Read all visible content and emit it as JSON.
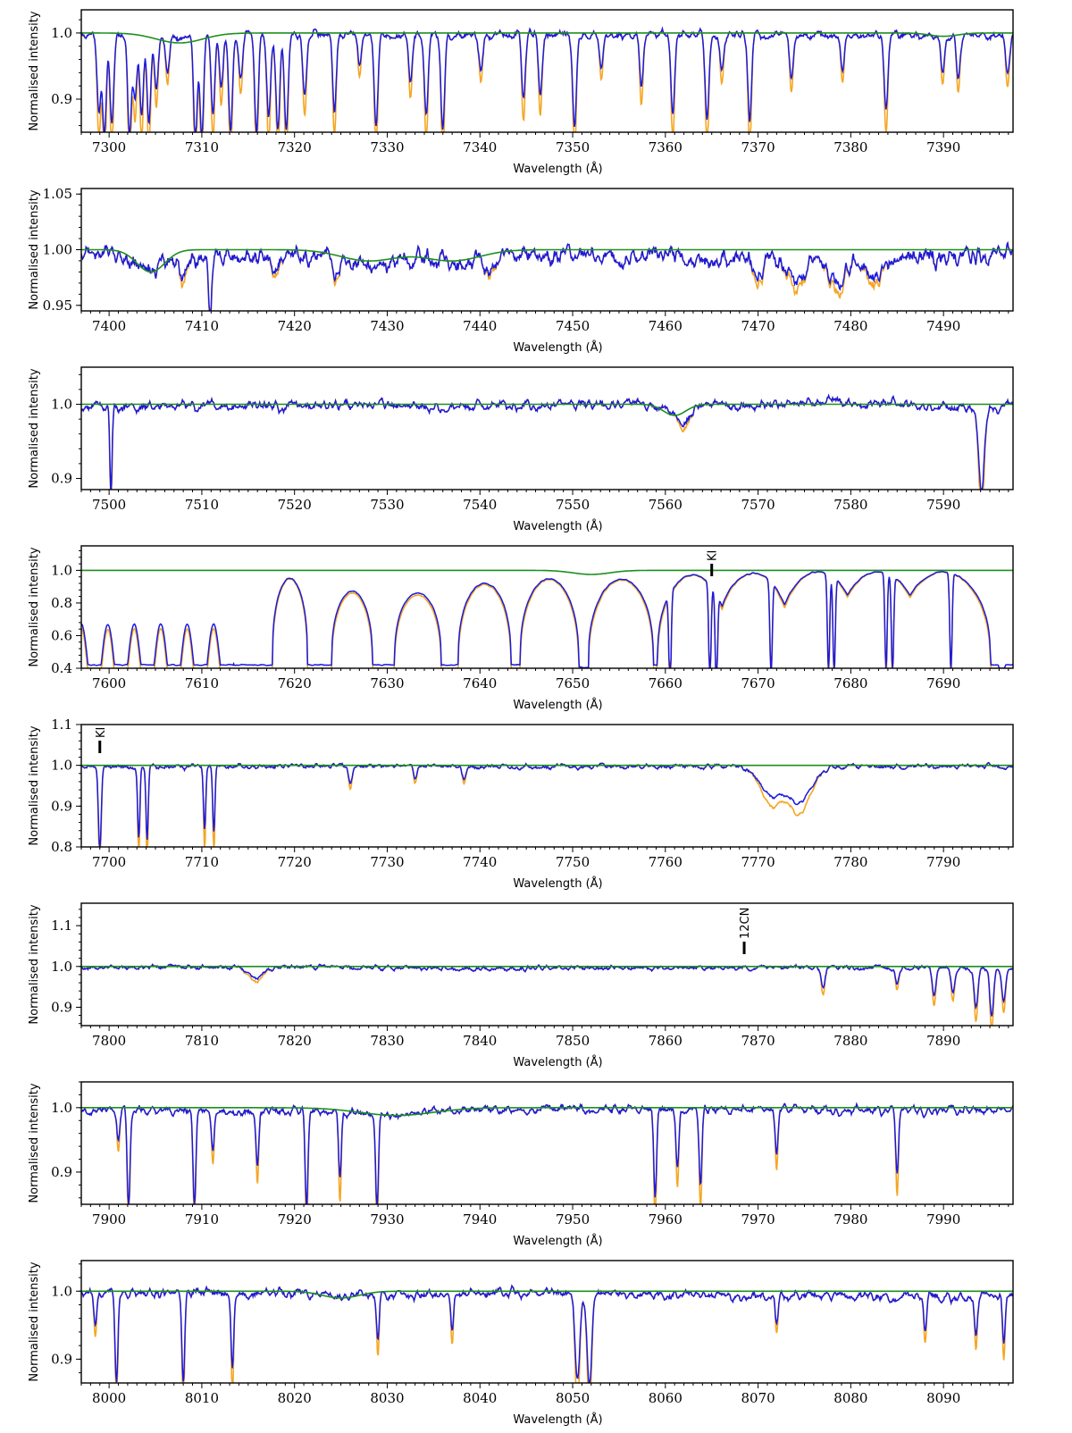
{
  "colors": {
    "observed": "#1a1adf",
    "telluric_corrected": "#f5a623",
    "model": "#1f8f1f",
    "axis": "#000000"
  },
  "chart_data": [
    {
      "type": "line",
      "xlabel": "Wavelength (Å)",
      "ylabel": "Normalised intensity",
      "xlim": [
        7297,
        7397.5
      ],
      "ylim": [
        0.85,
        1.035
      ],
      "xticks": [
        7300,
        7310,
        7320,
        7330,
        7340,
        7350,
        7360,
        7370,
        7380,
        7390
      ],
      "yticks": [
        0.9,
        1.0
      ],
      "ytick_labels": [
        "0.9",
        "1.0"
      ],
      "noise": 0.008,
      "depth_floor": 0.85,
      "dips": [
        [
          7298.9,
          0.12,
          0.2
        ],
        [
          7299.5,
          0.15,
          0.2
        ],
        [
          7300.3,
          0.14,
          0.2
        ],
        [
          7302.2,
          0.15,
          0.2
        ],
        [
          7302.8,
          0.1,
          0.2
        ],
        [
          7303.5,
          0.12,
          0.2
        ],
        [
          7304.3,
          0.13,
          0.2
        ],
        [
          7305.1,
          0.08,
          0.2
        ],
        [
          7306.3,
          0.05,
          0.2
        ],
        [
          7309.3,
          0.15,
          0.2
        ],
        [
          7310.0,
          0.15,
          0.2
        ],
        [
          7311.2,
          0.12,
          0.2
        ],
        [
          7312.1,
          0.08,
          0.2
        ],
        [
          7313.1,
          0.15,
          0.2
        ],
        [
          7314.2,
          0.07,
          0.2
        ],
        [
          7315.9,
          0.15,
          0.2
        ],
        [
          7317.2,
          0.13,
          0.2
        ],
        [
          7318.2,
          0.15,
          0.2
        ],
        [
          7319.1,
          0.15,
          0.2
        ],
        [
          7321.1,
          0.09,
          0.2
        ],
        [
          7324.3,
          0.12,
          0.2
        ],
        [
          7327.0,
          0.05,
          0.2
        ],
        [
          7328.8,
          0.13,
          0.2
        ],
        [
          7332.5,
          0.07,
          0.2
        ],
        [
          7334.2,
          0.12,
          0.2
        ],
        [
          7336.0,
          0.14,
          0.2
        ],
        [
          7340.1,
          0.05,
          0.2
        ],
        [
          7344.7,
          0.1,
          0.2
        ],
        [
          7346.5,
          0.09,
          0.2
        ],
        [
          7350.2,
          0.14,
          0.2
        ],
        [
          7353.1,
          0.05,
          0.2
        ],
        [
          7357.4,
          0.08,
          0.2
        ],
        [
          7360.8,
          0.12,
          0.2
        ],
        [
          7364.5,
          0.13,
          0.2
        ],
        [
          7366.1,
          0.06,
          0.2
        ],
        [
          7369.1,
          0.13,
          0.2
        ],
        [
          7373.6,
          0.06,
          0.2
        ],
        [
          7379.1,
          0.05,
          0.2
        ],
        [
          7383.8,
          0.11,
          0.2
        ],
        [
          7389.9,
          0.05,
          0.2
        ],
        [
          7391.6,
          0.06,
          0.2
        ],
        [
          7396.9,
          0.06,
          0.2
        ]
      ],
      "model_dips": [
        [
          7307.6,
          0.015,
          2.5
        ],
        [
          7390.0,
          0.005,
          1.5
        ]
      ],
      "annotations": []
    },
    {
      "type": "line",
      "xlabel": "Wavelength (Å)",
      "ylabel": "Normalised intensity",
      "xlim": [
        7397,
        7497.5
      ],
      "ylim": [
        0.945,
        1.055
      ],
      "xticks": [
        7400,
        7410,
        7420,
        7430,
        7440,
        7450,
        7460,
        7470,
        7480,
        7490
      ],
      "yticks": [
        0.95,
        1.0,
        1.05
      ],
      "ytick_labels": [
        "0.95",
        "1.00",
        "1.05"
      ],
      "noise": 0.01,
      "depth_floor": 0.945,
      "dips": [
        [
          7410.9,
          0.05,
          0.15
        ],
        [
          7408.0,
          0.02,
          0.3
        ],
        [
          7424.5,
          0.015,
          0.3
        ],
        [
          7418.0,
          0.012,
          0.5
        ],
        [
          7441.2,
          0.01,
          0.5
        ],
        [
          7470.0,
          0.02,
          0.5
        ],
        [
          7474.0,
          0.025,
          0.8
        ],
        [
          7478.5,
          0.025,
          0.8
        ],
        [
          7482.5,
          0.02,
          0.8
        ]
      ],
      "model_dips": [
        [
          7404.5,
          0.02,
          1.5
        ],
        [
          7428.0,
          0.01,
          3.0
        ],
        [
          7437.0,
          0.01,
          3.0
        ]
      ],
      "annotations": []
    },
    {
      "type": "line",
      "xlabel": "Wavelength (Å)",
      "ylabel": "Normalised intensity",
      "xlim": [
        7497,
        7597.5
      ],
      "ylim": [
        0.885,
        1.05
      ],
      "xticks": [
        7500,
        7510,
        7520,
        7530,
        7540,
        7550,
        7560,
        7570,
        7580,
        7590
      ],
      "yticks": [
        0.9,
        1.0
      ],
      "ytick_labels": [
        "0.9",
        "1.0"
      ],
      "noise": 0.008,
      "depth_floor": 0.885,
      "dips": [
        [
          7500.2,
          0.115,
          0.12
        ],
        [
          7594.1,
          0.115,
          0.3
        ],
        [
          7562.0,
          0.02,
          0.6
        ]
      ],
      "model_dips": [
        [
          7561.0,
          0.015,
          1.2
        ]
      ],
      "annotations": []
    },
    {
      "type": "line",
      "xlabel": "Wavelength (Å)",
      "ylabel": "Normalised intensity",
      "xlim": [
        7597,
        7697.5
      ],
      "ylim": [
        0.4,
        1.15
      ],
      "xticks": [
        7600,
        7610,
        7620,
        7630,
        7640,
        7650,
        7660,
        7670,
        7680,
        7690
      ],
      "yticks": [
        0.4,
        0.6,
        0.8,
        1.0
      ],
      "ytick_labels": [
        "0.4",
        "0.6",
        "0.8",
        "1.0"
      ],
      "noise": 0.01,
      "depth_floor": 0.4,
      "dips": [],
      "model_dips": [
        [
          7652.0,
          0.025,
          2.0
        ]
      ],
      "annotations": [
        {
          "label": "KI",
          "x": 7665.0
        }
      ]
    },
    {
      "type": "line",
      "xlabel": "Wavelength (Å)",
      "ylabel": "Normalised intensity",
      "xlim": [
        7697,
        7797.5
      ],
      "ylim": [
        0.8,
        1.1
      ],
      "xticks": [
        7700,
        7710,
        7720,
        7730,
        7740,
        7750,
        7760,
        7770,
        7780,
        7790
      ],
      "yticks": [
        0.8,
        0.9,
        1.0,
        1.1
      ],
      "ytick_labels": [
        "0.8",
        "0.9",
        "1.0",
        "1.1"
      ],
      "noise": 0.007,
      "depth_floor": 0.8,
      "dips": [
        [
          7699.0,
          0.2,
          0.15
        ],
        [
          7703.2,
          0.18,
          0.12
        ],
        [
          7704.1,
          0.18,
          0.12
        ],
        [
          7710.3,
          0.16,
          0.12
        ],
        [
          7711.3,
          0.16,
          0.12
        ],
        [
          7771.5,
          0.07,
          1.2
        ],
        [
          7774.5,
          0.08,
          1.2
        ],
        [
          7726.0,
          0.04,
          0.2
        ],
        [
          7733.0,
          0.03,
          0.2
        ],
        [
          7738.3,
          0.03,
          0.2
        ]
      ],
      "model_dips": [],
      "annotations": [
        {
          "label": "KI",
          "x": 7699.0
        }
      ]
    },
    {
      "type": "line",
      "xlabel": "Wavelength (Å)",
      "ylabel": "Normalised intensity",
      "xlim": [
        7797,
        7897.5
      ],
      "ylim": [
        0.855,
        1.155
      ],
      "xticks": [
        7800,
        7810,
        7820,
        7830,
        7840,
        7850,
        7860,
        7870,
        7880,
        7890
      ],
      "yticks": [
        0.9,
        1.0,
        1.1
      ],
      "ytick_labels": [
        "0.9",
        "1.0",
        "1.1"
      ],
      "noise": 0.007,
      "depth_floor": 0.855,
      "dips": [
        [
          7815.8,
          0.025,
          1.0
        ],
        [
          7877.0,
          0.05,
          0.2
        ],
        [
          7885.0,
          0.04,
          0.2
        ],
        [
          7889.0,
          0.07,
          0.2
        ],
        [
          7891.0,
          0.06,
          0.2
        ],
        [
          7893.5,
          0.1,
          0.2
        ],
        [
          7895.2,
          0.12,
          0.2
        ],
        [
          7896.5,
          0.08,
          0.2
        ]
      ],
      "model_dips": [],
      "annotations": [
        {
          "label": "12CN",
          "x": 7868.5
        }
      ]
    },
    {
      "type": "line",
      "xlabel": "Wavelength (Å)",
      "ylabel": "Normalised intensity",
      "xlim": [
        7897,
        7997.5
      ],
      "ylim": [
        0.85,
        1.04
      ],
      "xticks": [
        7900,
        7910,
        7920,
        7930,
        7940,
        7950,
        7960,
        7970,
        7980,
        7990
      ],
      "yticks": [
        0.9,
        1.0
      ],
      "ytick_labels": [
        "0.9",
        "1.0"
      ],
      "noise": 0.008,
      "depth_floor": 0.85,
      "dips": [
        [
          7901.0,
          0.05,
          0.15
        ],
        [
          7902.1,
          0.15,
          0.15
        ],
        [
          7909.2,
          0.15,
          0.15
        ],
        [
          7911.2,
          0.06,
          0.15
        ],
        [
          7916.0,
          0.08,
          0.15
        ],
        [
          7921.3,
          0.15,
          0.15
        ],
        [
          7924.9,
          0.11,
          0.15
        ],
        [
          7928.9,
          0.15,
          0.15
        ],
        [
          7958.9,
          0.13,
          0.15
        ],
        [
          7961.3,
          0.09,
          0.15
        ],
        [
          7963.8,
          0.12,
          0.15
        ],
        [
          7972.0,
          0.07,
          0.15
        ],
        [
          7985.0,
          0.1,
          0.15
        ]
      ],
      "model_dips": [
        [
          7931.0,
          0.012,
          4.0
        ]
      ],
      "annotations": []
    },
    {
      "type": "line",
      "xlabel": "Wavelength (Å)",
      "ylabel": "Normalised intensity",
      "xlim": [
        7997,
        8097.5
      ],
      "ylim": [
        0.865,
        1.045
      ],
      "xticks": [
        8000,
        8010,
        8020,
        8030,
        8040,
        8050,
        8060,
        8070,
        8080,
        8090
      ],
      "yticks": [
        0.9,
        1.0
      ],
      "ytick_labels": [
        "0.9",
        "1.0"
      ],
      "noise": 0.008,
      "depth_floor": 0.865,
      "dips": [
        [
          7998.5,
          0.05,
          0.15
        ],
        [
          8000.8,
          0.13,
          0.15
        ],
        [
          8008.0,
          0.13,
          0.15
        ],
        [
          8013.3,
          0.11,
          0.15
        ],
        [
          8029.0,
          0.07,
          0.15
        ],
        [
          8037.0,
          0.06,
          0.15
        ],
        [
          8050.5,
          0.135,
          0.25
        ],
        [
          8051.8,
          0.135,
          0.25
        ],
        [
          8072.0,
          0.04,
          0.15
        ],
        [
          8088.0,
          0.05,
          0.15
        ],
        [
          8093.5,
          0.06,
          0.15
        ],
        [
          8096.5,
          0.07,
          0.15
        ]
      ],
      "model_dips": [
        [
          8025.0,
          0.01,
          2.0
        ]
      ],
      "annotations": []
    }
  ]
}
